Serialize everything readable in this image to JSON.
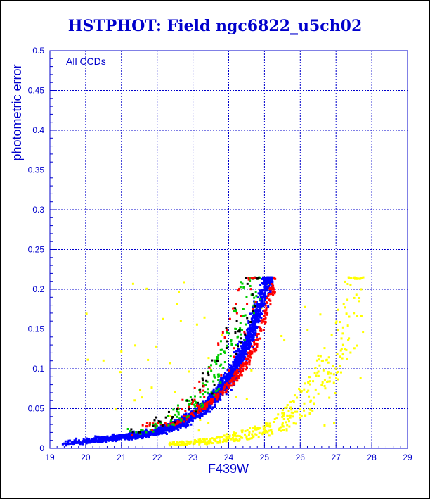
{
  "chart_data": {
    "type": "scatter",
    "title": "HSTPHOT: Field ngc6822_u5ch02",
    "xlabel": "F439W",
    "ylabel": "photometric error",
    "annotation": "All CCDs",
    "xlim": [
      19,
      29
    ],
    "ylim": [
      0,
      0.5
    ],
    "x_ticks": [
      "19",
      "20",
      "21",
      "22",
      "23",
      "24",
      "25",
      "26",
      "27",
      "28",
      "29"
    ],
    "y_ticks": [
      "0",
      "0.05",
      "0.1",
      "0.15",
      "0.2",
      "0.25",
      "0.3",
      "0.35",
      "0.4",
      "0.45",
      "0.5"
    ],
    "grid": true,
    "error_cap": 0.215,
    "series": [
      {
        "color": "#0000ff",
        "points": [
          [
            19.4,
            0.006
          ],
          [
            19.9,
            0.008
          ],
          [
            20.3,
            0.01
          ],
          [
            20.7,
            0.012
          ],
          [
            21.1,
            0.014
          ],
          [
            21.5,
            0.016
          ],
          [
            21.9,
            0.019
          ],
          [
            22.3,
            0.024
          ],
          [
            22.6,
            0.029
          ],
          [
            22.9,
            0.036
          ],
          [
            23.2,
            0.045
          ],
          [
            23.4,
            0.052
          ],
          [
            23.6,
            0.061
          ],
          [
            23.8,
            0.072
          ],
          [
            24.0,
            0.084
          ],
          [
            24.2,
            0.097
          ],
          [
            24.4,
            0.115
          ],
          [
            24.6,
            0.135
          ],
          [
            24.8,
            0.16
          ],
          [
            25.0,
            0.19
          ],
          [
            25.15,
            0.212
          ]
        ]
      },
      {
        "color": "#ff0000",
        "points": [
          [
            22.5,
            0.03
          ],
          [
            23.0,
            0.042
          ],
          [
            23.4,
            0.055
          ],
          [
            23.8,
            0.07
          ],
          [
            24.1,
            0.085
          ],
          [
            24.4,
            0.1
          ],
          [
            24.7,
            0.125
          ],
          [
            24.9,
            0.15
          ],
          [
            25.05,
            0.175
          ],
          [
            25.2,
            0.2
          ],
          [
            25.3,
            0.213
          ]
        ]
      },
      {
        "color": "#00cc00",
        "points": [
          [
            21.8,
            0.03
          ],
          [
            22.6,
            0.05
          ],
          [
            23.2,
            0.07
          ],
          [
            23.6,
            0.09
          ],
          [
            23.9,
            0.12
          ],
          [
            24.2,
            0.15
          ],
          [
            24.5,
            0.19
          ]
        ]
      },
      {
        "color": "#ffff00",
        "points": [
          [
            22.5,
            0.005
          ],
          [
            23.5,
            0.008
          ],
          [
            24.5,
            0.015
          ],
          [
            25.0,
            0.02
          ],
          [
            25.5,
            0.03
          ],
          [
            25.8,
            0.04
          ],
          [
            26.0,
            0.05
          ],
          [
            26.3,
            0.06
          ],
          [
            26.6,
            0.08
          ],
          [
            27.0,
            0.1
          ],
          [
            27.2,
            0.13
          ],
          [
            27.5,
            0.17
          ],
          [
            27.7,
            0.2
          ]
        ]
      }
    ]
  }
}
